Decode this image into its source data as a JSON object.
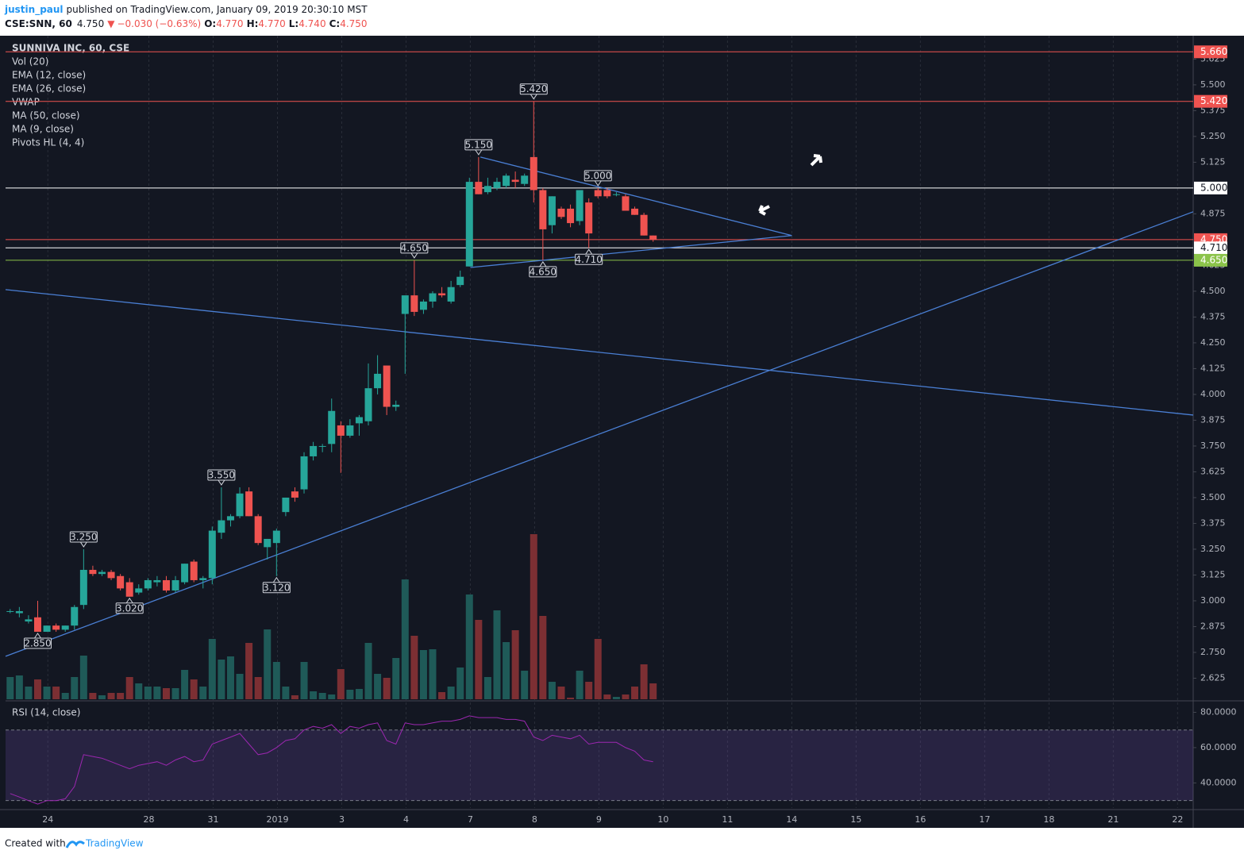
{
  "header": {
    "author": "justin_paul",
    "published": "published on TradingView.com, January 09, 2019 20:30:10 MST",
    "symbol": "CSE:SNN, 60",
    "last": "4.750",
    "direction": "▼",
    "change": "−0.030 (−0.63%)",
    "ohlc": [
      {
        "key": "O:",
        "value": "4.770"
      },
      {
        "key": "H:",
        "value": "4.770"
      },
      {
        "key": "L:",
        "value": "4.740"
      },
      {
        "key": "C:",
        "value": "4.750"
      }
    ]
  },
  "legend": [
    "SUNNIVA INC, 60, CSE",
    "Vol (20)",
    "EMA (12, close)",
    "EMA (26, close)",
    "VWAP",
    "MA (50, close)",
    "MA (9, close)",
    "Pivots HL (4, 4)"
  ],
  "footer": {
    "prefix": "Created with",
    "brand": "TradingView"
  },
  "chart_data": [
    {
      "type": "candlestick",
      "up_color": "#26a69a",
      "down_color": "#ef5350",
      "open": [
        2.95,
        2.94,
        2.9,
        2.92,
        2.85,
        2.88,
        2.86,
        2.88,
        2.98,
        3.15,
        3.13,
        3.14,
        3.12,
        3.09,
        3.04,
        3.06,
        3.09,
        3.1,
        3.05,
        3.09,
        3.19,
        3.1,
        3.11,
        3.33,
        3.39,
        3.41,
        3.53,
        3.41,
        3.26,
        3.28,
        3.43,
        3.53,
        3.54,
        3.7,
        3.75,
        3.76,
        3.85,
        3.8,
        3.86,
        3.87,
        4.03,
        4.14,
        3.94,
        4.39,
        4.48,
        4.41,
        4.45,
        4.49,
        4.45,
        4.53,
        4.62,
        5.03,
        4.98,
        5.0,
        5.01,
        5.04,
        5.02,
        5.15,
        4.99,
        4.82,
        4.9,
        4.9,
        4.84,
        4.93,
        4.99,
        4.99,
        4.97,
        4.96,
        4.9,
        4.87,
        4.77
      ],
      "high": [
        2.96,
        2.97,
        2.93,
        3.0,
        2.88,
        2.89,
        2.88,
        2.98,
        3.25,
        3.17,
        3.15,
        3.15,
        3.13,
        3.11,
        3.08,
        3.11,
        3.12,
        3.12,
        3.12,
        3.18,
        3.2,
        3.12,
        3.36,
        3.55,
        3.42,
        3.55,
        3.55,
        3.42,
        3.3,
        3.35,
        3.5,
        3.55,
        3.72,
        3.77,
        3.76,
        3.98,
        3.87,
        3.88,
        3.9,
        4.15,
        4.19,
        4.14,
        3.97,
        4.47,
        4.65,
        4.46,
        4.5,
        4.52,
        4.55,
        4.6,
        5.05,
        5.15,
        5.05,
        5.05,
        5.07,
        5.08,
        5.07,
        5.42,
        5.0,
        4.96,
        4.91,
        4.92,
        4.99,
        4.95,
        5.0,
        5.0,
        4.98,
        4.97,
        4.91,
        4.88,
        4.77
      ],
      "low": [
        2.94,
        2.92,
        2.89,
        2.85,
        2.85,
        2.85,
        2.85,
        2.86,
        2.96,
        3.12,
        3.12,
        3.1,
        3.05,
        3.02,
        3.03,
        3.05,
        3.07,
        3.04,
        3.04,
        3.08,
        3.09,
        3.06,
        3.08,
        3.3,
        3.36,
        3.4,
        3.41,
        3.27,
        3.2,
        3.12,
        3.41,
        3.48,
        3.52,
        3.68,
        3.72,
        3.72,
        3.62,
        3.79,
        3.8,
        3.85,
        4.0,
        3.9,
        3.92,
        4.1,
        4.38,
        4.39,
        4.42,
        4.47,
        4.44,
        4.52,
        4.62,
        4.97,
        4.97,
        4.99,
        5.0,
        5.0,
        5.01,
        4.93,
        4.65,
        4.78,
        4.85,
        4.81,
        4.82,
        4.71,
        4.95,
        4.95,
        4.96,
        4.89,
        4.87,
        4.77,
        4.74
      ],
      "close": [
        2.95,
        2.95,
        2.91,
        2.85,
        2.88,
        2.86,
        2.88,
        2.97,
        3.15,
        3.13,
        3.14,
        3.11,
        3.06,
        3.02,
        3.06,
        3.1,
        3.1,
        3.05,
        3.1,
        3.18,
        3.1,
        3.11,
        3.34,
        3.39,
        3.41,
        3.52,
        3.41,
        3.28,
        3.3,
        3.34,
        3.5,
        3.5,
        3.7,
        3.75,
        3.75,
        3.92,
        3.8,
        3.85,
        3.89,
        4.03,
        4.1,
        3.94,
        3.95,
        4.48,
        4.4,
        4.45,
        4.49,
        4.48,
        4.52,
        4.57,
        5.03,
        4.97,
        5.01,
        5.03,
        5.06,
        5.03,
        5.06,
        4.99,
        4.8,
        4.96,
        4.86,
        4.83,
        4.99,
        4.78,
        4.96,
        4.96,
        4.97,
        4.89,
        4.87,
        4.77,
        4.75
      ],
      "volume": [
        28,
        30,
        16,
        25,
        16,
        16,
        8,
        28,
        55,
        8,
        5,
        8,
        8,
        28,
        20,
        16,
        16,
        14,
        14,
        37,
        25,
        16,
        76,
        50,
        54,
        32,
        71,
        28,
        88,
        47,
        16,
        5,
        47,
        10,
        8,
        6,
        38,
        12,
        13,
        71,
        32,
        27,
        52,
        151,
        80,
        62,
        63,
        9,
        16,
        40,
        132,
        100,
        28,
        112,
        72,
        87,
        36,
        208,
        105,
        22,
        16,
        2,
        36,
        22,
        76,
        6,
        3,
        6,
        16,
        44,
        20
      ],
      "xlim": [
        0,
        129.3
      ],
      "ylim": [
        2.523,
        5.738
      ],
      "xticks": [
        {
          "value": 4.6,
          "label": "24"
        },
        {
          "value": 15.6,
          "label": "28"
        },
        {
          "value": 22.6,
          "label": "31"
        },
        {
          "value": 29.6,
          "label": "2019"
        },
        {
          "value": 36.6,
          "label": "3"
        },
        {
          "value": 43.6,
          "label": "4"
        },
        {
          "value": 50.6,
          "label": "7"
        },
        {
          "value": 57.6,
          "label": "8"
        },
        {
          "value": 64.6,
          "label": "9"
        },
        {
          "value": 71.6,
          "label": "10"
        },
        {
          "value": 78.6,
          "label": "11"
        },
        {
          "value": 85.6,
          "label": "14"
        },
        {
          "value": 92.6,
          "label": "15"
        },
        {
          "value": 99.6,
          "label": "16"
        },
        {
          "value": 106.6,
          "label": "17"
        },
        {
          "value": 113.6,
          "label": "18"
        },
        {
          "value": 120.6,
          "label": "21"
        },
        {
          "value": 127.6,
          "label": "22"
        }
      ],
      "yticks": [
        {
          "value": 2.625,
          "label": "2.625"
        },
        {
          "value": 2.75,
          "label": "2.750"
        },
        {
          "value": 2.875,
          "label": "2.875"
        },
        {
          "value": 3,
          "label": "3.000"
        },
        {
          "value": 3.125,
          "label": "3.125"
        },
        {
          "value": 3.25,
          "label": "3.250"
        },
        {
          "value": 3.375,
          "label": "3.375"
        },
        {
          "value": 3.5,
          "label": "3.500"
        },
        {
          "value": 3.625,
          "label": "3.625"
        },
        {
          "value": 3.75,
          "label": "3.750"
        },
        {
          "value": 3.875,
          "label": "3.875"
        },
        {
          "value": 4,
          "label": "4.000"
        },
        {
          "value": 4.125,
          "label": "4.125"
        },
        {
          "value": 4.25,
          "label": "4.250"
        },
        {
          "value": 4.375,
          "label": "4.375"
        },
        {
          "value": 4.5,
          "label": "4.500"
        },
        {
          "value": 4.625,
          "label": "4.625"
        },
        {
          "value": 4.75,
          "label": "4.750"
        },
        {
          "value": 4.875,
          "label": "4.875"
        },
        {
          "value": 5,
          "label": "5.000"
        },
        {
          "value": 5.125,
          "label": "5.125"
        },
        {
          "value": 5.25,
          "label": "5.250"
        },
        {
          "value": 5.375,
          "label": "5.375"
        },
        {
          "value": 5.5,
          "label": "5.500"
        },
        {
          "value": 5.625,
          "label": "5.625"
        }
      ],
      "levels": [
        {
          "value": 5.66,
          "label": "5.660",
          "color": "#ef5350"
        },
        {
          "value": 5.42,
          "label": "5.420",
          "color": "#ef5350"
        },
        {
          "value": 5,
          "label": "5.000",
          "color": "#ffffff"
        },
        {
          "value": 4.75,
          "label": "4.750",
          "color": "#ef5350"
        },
        {
          "value": 4.71,
          "label": "4.710",
          "color": "#ffffff"
        },
        {
          "value": 4.65,
          "label": "4.650",
          "color": "#8bc34a"
        }
      ],
      "pivots": [
        {
          "candle": 3,
          "value": 2.85,
          "label": "2.850",
          "kind": "low"
        },
        {
          "candle": 8,
          "value": 3.25,
          "label": "3.250",
          "kind": "high"
        },
        {
          "candle": 13,
          "value": 3.02,
          "label": "3.020",
          "kind": "low"
        },
        {
          "candle": 23,
          "value": 3.55,
          "label": "3.550",
          "kind": "high"
        },
        {
          "candle": 29,
          "value": 3.12,
          "label": "3.120",
          "kind": "low"
        },
        {
          "candle": 44,
          "value": 4.65,
          "label": "4.650",
          "kind": "high"
        },
        {
          "candle": 51,
          "value": 5.15,
          "label": "5.150",
          "kind": "high"
        },
        {
          "candle": 57,
          "value": 5.42,
          "label": "5.420",
          "kind": "high"
        },
        {
          "candle": 58,
          "value": 4.65,
          "label": "4.650",
          "kind": "low"
        },
        {
          "candle": 63,
          "value": 4.71,
          "label": "4.710",
          "kind": "low"
        },
        {
          "candle": 64,
          "value": 5,
          "label": "5.000",
          "kind": "high"
        }
      ],
      "trendlines": [
        {
          "x": [
            0,
            129.3
          ],
          "y": [
            4.508,
            3.9
          ]
        },
        {
          "x": [
            0,
            129.3
          ],
          "y": [
            2.731,
            4.885
          ]
        },
        {
          "x": [
            51.7,
            85.6
          ],
          "y": [
            5.15,
            4.77
          ]
        },
        {
          "x": [
            50.6,
            85.6
          ],
          "y": [
            4.615,
            4.77
          ]
        }
      ],
      "trend_color": "#4a7fd4"
    },
    {
      "type": "line",
      "title": "RSI (14, close)",
      "color": "#9c27b0",
      "values": [
        34,
        32,
        30,
        28,
        30,
        30,
        31,
        38,
        56,
        55,
        54,
        52,
        50,
        48,
        50,
        51,
        52,
        50,
        53,
        55,
        52,
        53,
        62,
        64,
        66,
        68,
        62,
        56,
        57,
        60,
        64,
        65,
        70,
        72,
        71,
        73,
        68,
        72,
        71,
        73,
        74,
        64,
        62,
        74,
        73,
        73,
        74,
        75,
        75,
        76,
        78,
        77,
        77,
        77,
        76,
        76,
        75,
        66,
        64,
        67,
        66,
        65,
        67,
        62,
        63,
        63,
        63,
        60,
        58,
        53,
        52
      ],
      "ylim": [
        25.8,
        85.6
      ],
      "band": [
        30,
        70
      ],
      "yticks": [
        {
          "value": 40,
          "label": "40.0000"
        },
        {
          "value": 60,
          "label": "60.0000"
        },
        {
          "value": 80,
          "label": "80.0000"
        }
      ]
    }
  ]
}
